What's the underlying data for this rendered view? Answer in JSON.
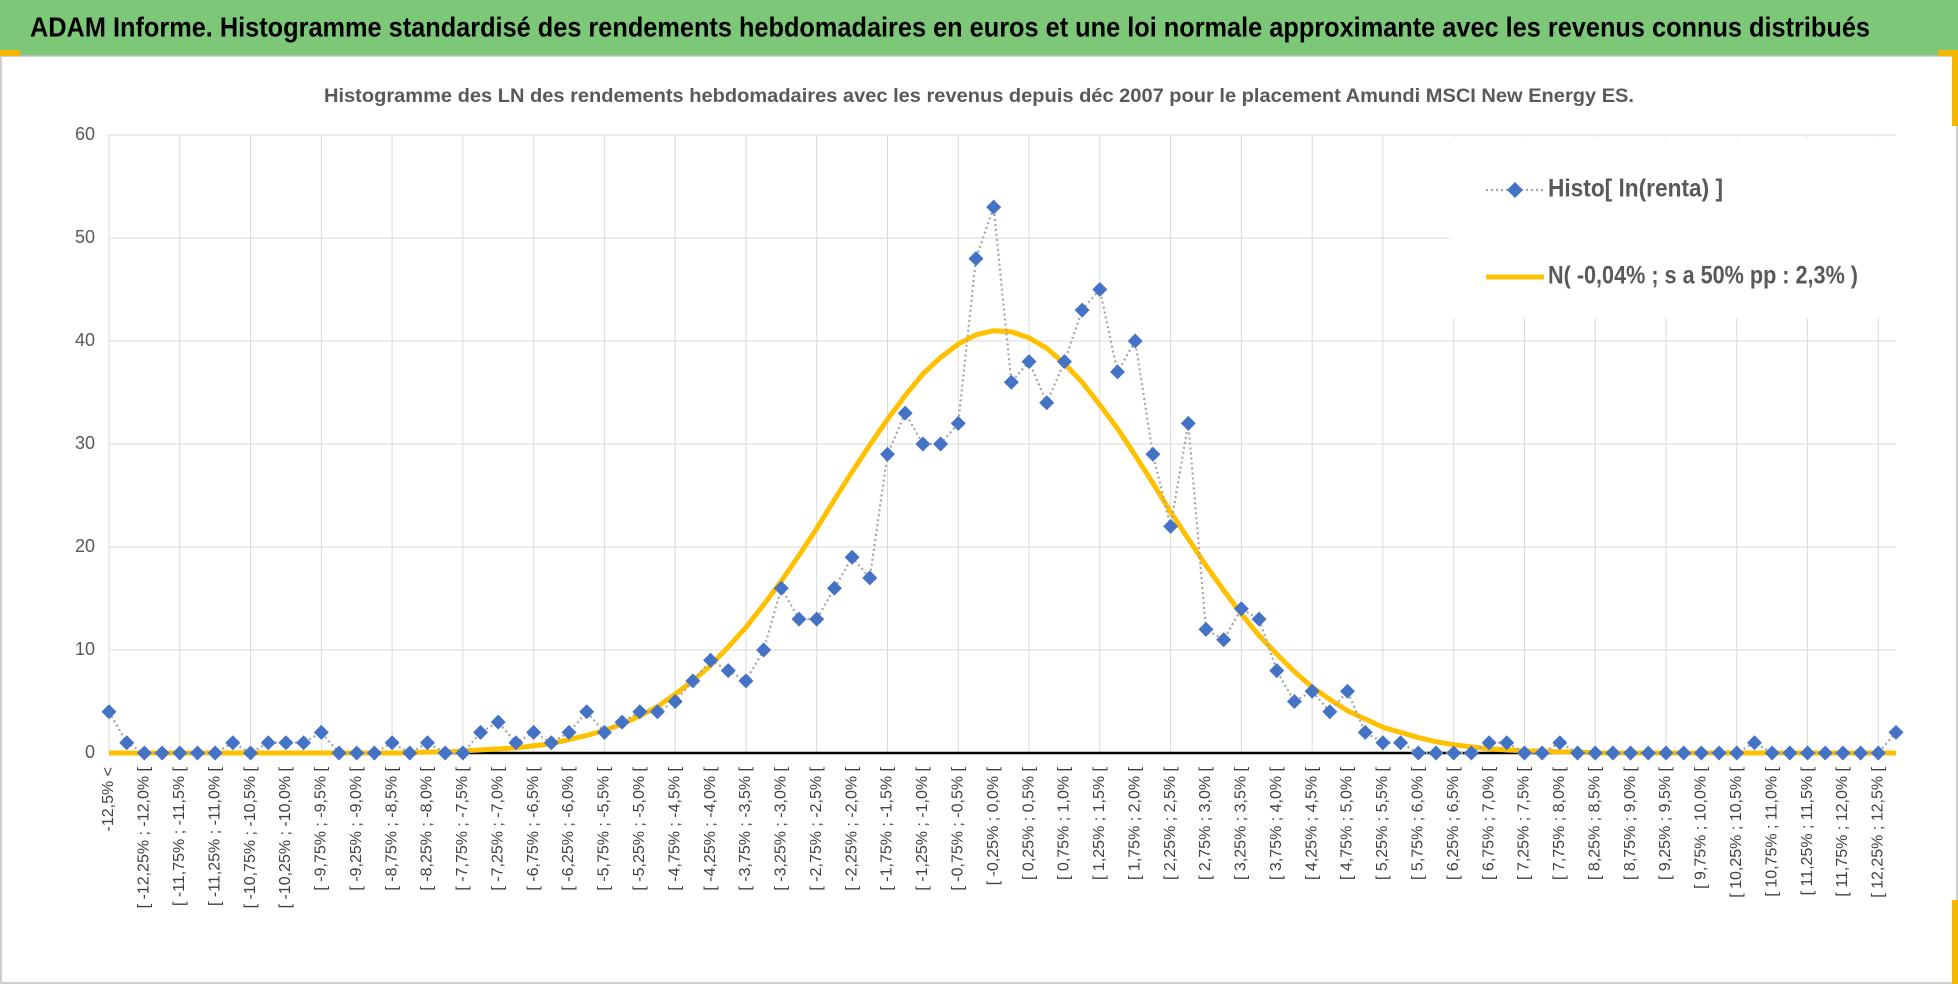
{
  "header": {
    "title": "ADAM Informe. Histogramme standardisé des rendements hebdomadaires en euros et une loi normale approximante avec les revenus connus distribués"
  },
  "chart_data": {
    "type": "line",
    "title": "Histogramme  des LN des rendements  hebdomadaires avec les revenus depuis déc 2007 pour le placement Amundi MSCI New Energy ES.",
    "categories": [
      "-12,5% <",
      null,
      "[ -12,25% ; -12,0% [",
      null,
      "[ -11,75% ; -11,5% [",
      null,
      "[ -11,25% ; -11,0% [",
      null,
      "[ -10,75% ; -10,5% [",
      null,
      "[ -10,25% ; -10,0% [",
      null,
      "[ -9,75% ; -9,5% [",
      null,
      "[ -9,25% ; -9,0% [",
      null,
      "[ -8,75% ; -8,5% [",
      null,
      "[ -8,25% ; -8,0% [",
      null,
      "[ -7,75% ; -7,5% [",
      null,
      "[ -7,25% ; -7,0% [",
      null,
      "[ -6,75% ; -6,5% [",
      null,
      "[ -6,25% ; -6,0% [",
      null,
      "[ -5,75% ; -5,5% [",
      null,
      "[ -5,25% ; -5,0% [",
      null,
      "[ -4,75% ; -4,5% [",
      null,
      "[ -4,25% ; -4,0% [",
      null,
      "[ -3,75% ; -3,5% [",
      null,
      "[ -3,25% ; -3,0% [",
      null,
      "[ -2,75% ; -2,5% [",
      null,
      "[ -2,25% ; -2,0% [",
      null,
      "[ -1,75% ; -1,5% [",
      null,
      "[ -1,25% ; -1,0% [",
      null,
      "[ -0,75% ; -0,5% [",
      null,
      "[ -0,25% ; 0,0% [",
      null,
      "[ 0,25% ; 0,5% [",
      null,
      "[ 0,75% ; 1,0% [",
      null,
      "[ 1,25% ; 1,5% [",
      null,
      "[ 1,75% ; 2,0% [",
      null,
      "[ 2,25% ; 2,5% [",
      null,
      "[ 2,75% ; 3,0% [",
      null,
      "[ 3,25% ; 3,5% [",
      null,
      "[ 3,75% ; 4,0% [",
      null,
      "[ 4,25% ; 4,5% [",
      null,
      "[ 4,75% ; 5,0% [",
      null,
      "[ 5,25% ; 5,5% [",
      null,
      "[ 5,75% ; 6,0% [",
      null,
      "[ 6,25% ; 6,5% [",
      null,
      "[ 6,75% ; 7,0% [",
      null,
      "[ 7,25% ; 7,5% [",
      null,
      "[ 7,75% ; 8,0% [",
      null,
      "[ 8,25% ; 8,5% [",
      null,
      "[ 8,75% ; 9,0% [",
      null,
      "[ 9,25% ; 9,5% [",
      null,
      "[ 9,75% ; 10,0% [",
      null,
      "[ 10,25% ; 10,5% [",
      null,
      "[ 10,75% ; 11,0% [",
      null,
      "[ 11,25% ; 11,5% [",
      null,
      "[ 11,75% ; 12,0% [",
      null,
      "[ 12,25% ; 12,5% [",
      null
    ],
    "series": [
      {
        "name": "Histo[ ln(renta) ]",
        "color": "#4472c4",
        "line_color": "#a5a5a5",
        "values": [
          4,
          1,
          0,
          0,
          0,
          0,
          0,
          1,
          0,
          1,
          1,
          1,
          2,
          0,
          0,
          0,
          1,
          0,
          1,
          0,
          0,
          2,
          3,
          1,
          2,
          1,
          2,
          4,
          2,
          3,
          4,
          4,
          5,
          7,
          9,
          8,
          7,
          10,
          16,
          13,
          13,
          16,
          19,
          17,
          29,
          33,
          30,
          30,
          32,
          48,
          53,
          36,
          38,
          34,
          38,
          43,
          45,
          37,
          40,
          29,
          22,
          32,
          12,
          11,
          14,
          13,
          8,
          5,
          6,
          4,
          6,
          2,
          1,
          1,
          0,
          0,
          0,
          0,
          1,
          1,
          0,
          0,
          1,
          0,
          0,
          0,
          0,
          0,
          0,
          0,
          0,
          0,
          0,
          1,
          0,
          0,
          0,
          0,
          0,
          0,
          0,
          2
        ]
      },
      {
        "name": "N( -0,04% ; s a 50% pp : 2,3% )",
        "color": "#ffc000",
        "values": [
          0,
          0,
          0,
          0,
          0,
          0,
          0,
          0,
          0,
          0,
          0,
          0,
          0,
          0,
          0,
          0,
          0,
          0,
          0.1,
          0.1,
          0.2,
          0.3,
          0.4,
          0.5,
          0.7,
          0.9,
          1.3,
          1.7,
          2.2,
          2.8,
          3.6,
          4.5,
          5.7,
          7.0,
          8.5,
          10.3,
          12.2,
          14.4,
          16.7,
          19.2,
          21.8,
          24.6,
          27.3,
          29.9,
          32.4,
          34.7,
          36.8,
          38.4,
          39.7,
          40.6,
          41.0,
          40.9,
          40.3,
          39.3,
          37.8,
          36.0,
          33.8,
          31.5,
          28.9,
          26.2,
          23.4,
          20.8,
          18.2,
          15.8,
          13.5,
          11.4,
          9.6,
          7.9,
          6.4,
          5.2,
          4.1,
          3.3,
          2.5,
          2.0,
          1.5,
          1.1,
          0.8,
          0.6,
          0.4,
          0.3,
          0.2,
          0.2,
          0.1,
          0.1,
          0,
          0,
          0,
          0,
          0,
          0,
          0,
          0,
          0,
          0,
          0,
          0,
          0,
          0,
          0,
          0,
          0,
          0
        ]
      }
    ],
    "ylim": [
      0,
      60
    ],
    "yticks": [
      0,
      10,
      20,
      30,
      40,
      50,
      60
    ],
    "grid": true,
    "legend": "upper right"
  }
}
